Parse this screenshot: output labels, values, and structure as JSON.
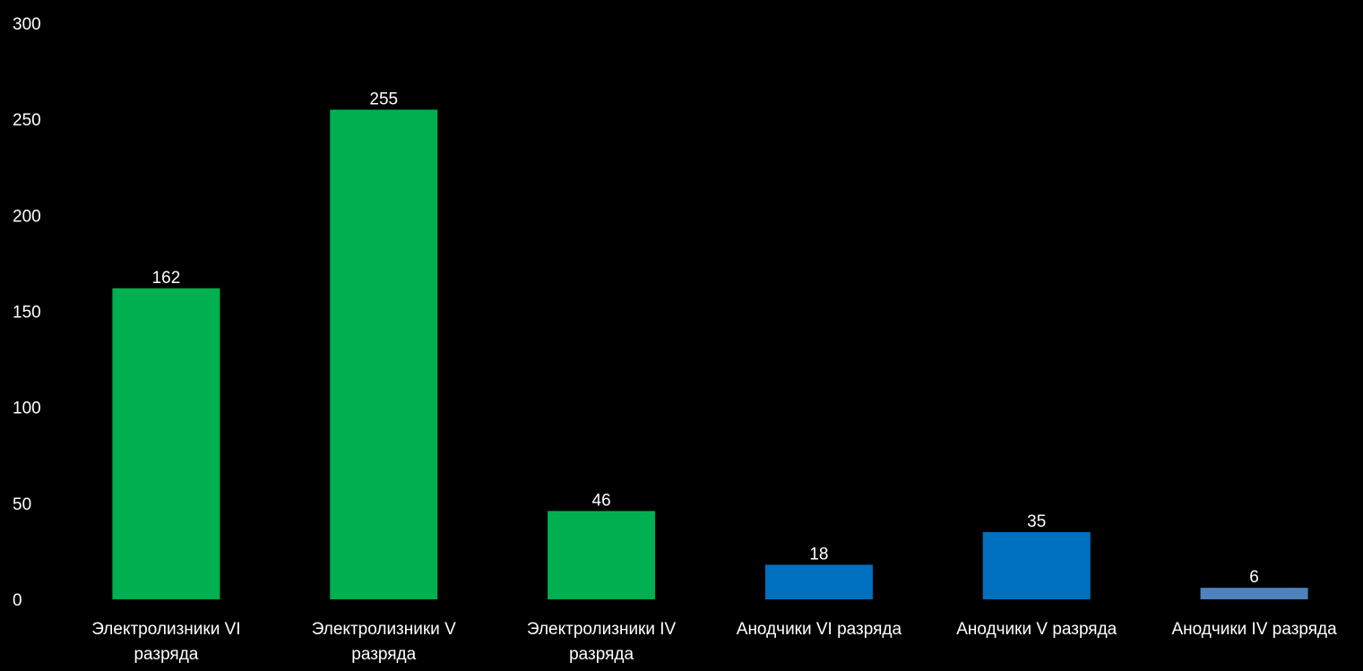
{
  "chart_data": {
    "type": "bar",
    "categories": [
      [
        "Электролизники VI",
        "разряда"
      ],
      [
        "Электролизники V",
        "разряда"
      ],
      [
        "Электролизники IV",
        "разряда"
      ],
      [
        "Анодчики VI разряда"
      ],
      [
        "Анодчики V разряда"
      ],
      [
        "Анодчики IV разряда"
      ]
    ],
    "values": [
      162,
      255,
      46,
      18,
      35,
      6
    ],
    "value_labels": [
      "162",
      "255",
      "46",
      "18",
      "35",
      "6"
    ],
    "bar_colors": [
      "#00b050",
      "#00b050",
      "#00b050",
      "#0070c0",
      "#0070c0",
      "#4f81bd"
    ],
    "ylim": [
      0,
      300
    ],
    "yticks": [
      "0",
      "50",
      "100",
      "150",
      "200",
      "250",
      "300"
    ],
    "ytick_values": [
      0,
      50,
      100,
      150,
      200,
      250,
      300
    ],
    "grid": false,
    "title": "",
    "xlabel": "",
    "ylabel": ""
  },
  "colors": {
    "background": "#000000",
    "text": "#ffffff"
  }
}
